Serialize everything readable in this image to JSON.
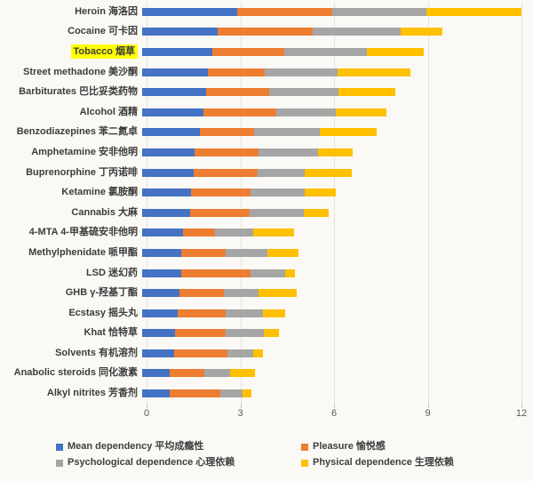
{
  "chart_data": {
    "type": "bar",
    "orientation": "horizontal",
    "stacked": true,
    "title": "",
    "xlabel": "",
    "ylabel": "",
    "xlim": [
      0,
      12
    ],
    "x_ticks": [
      0,
      3,
      6,
      9,
      12
    ],
    "grid": true,
    "legend_position": "bottom",
    "highlighted_index": 2,
    "highlight_color": "#ffff00",
    "categories": [
      "Heroin 海洛因",
      "Cocaine 可卡因",
      "Tobacco 烟草",
      "Street methadone 美沙酮",
      "Barbiturates 巴比妥类药物",
      "Alcohol 酒精",
      "Benzodiazepines 苯二氮卓",
      "Amphetamine 安非他明",
      "Buprenorphine 丁丙诺啡",
      "Ketamine 氯胺酮",
      "Cannabis 大麻",
      "4-MTA 4-甲基硫安非他明",
      "Methylphenidate 哌甲酯",
      "LSD 迷幻药",
      "GHB γ-羟基丁酯",
      "Ecstasy 摇头丸",
      "Khat 恰特草",
      "Solvents 有机溶剂",
      "Anabolic steroids 同化激素",
      "Alkyl nitrites 芳香剂"
    ],
    "series": [
      {
        "name": "Mean dependency 平均成瘾性",
        "color": "#4472C4",
        "values": [
          3.0,
          2.39,
          2.21,
          2.08,
          2.01,
          1.93,
          1.83,
          1.67,
          1.64,
          1.54,
          1.51,
          1.3,
          1.25,
          1.23,
          1.19,
          1.13,
          1.04,
          1.01,
          0.88,
          0.87
        ]
      },
      {
        "name": "Pleasure 愉悦感",
        "color": "#ED7D31",
        "values": [
          3.0,
          3.0,
          2.3,
          1.8,
          2.0,
          2.3,
          1.7,
          2.0,
          2.0,
          1.9,
          1.9,
          1.0,
          1.4,
          2.2,
          1.4,
          1.5,
          1.6,
          1.7,
          1.1,
          1.6
        ]
      },
      {
        "name": "Psychological dependence 心理依赖",
        "color": "#A5A5A5",
        "values": [
          3.0,
          2.8,
          2.6,
          2.3,
          2.2,
          1.9,
          2.1,
          1.9,
          1.5,
          1.7,
          1.7,
          1.2,
          1.3,
          1.1,
          1.1,
          1.2,
          1.2,
          0.8,
          0.8,
          0.7
        ]
      },
      {
        "name": "Physical dependence 生理依赖",
        "color": "#FFC000",
        "values": [
          3.0,
          1.3,
          1.8,
          2.3,
          1.8,
          1.6,
          1.8,
          1.1,
          1.5,
          1.0,
          0.8,
          1.3,
          1.0,
          0.3,
          1.2,
          0.7,
          0.5,
          0.3,
          0.8,
          0.3
        ]
      }
    ]
  }
}
